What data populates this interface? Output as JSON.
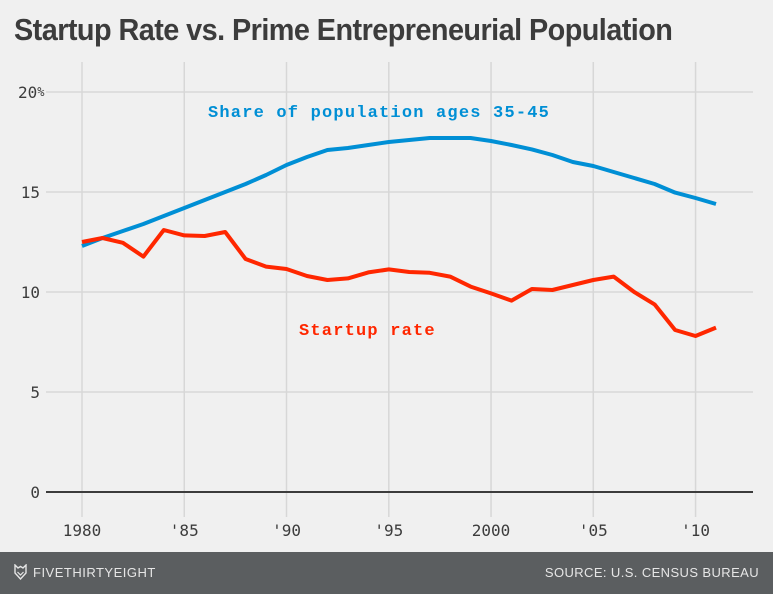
{
  "chart_data": {
    "type": "line",
    "title": "Startup Rate vs. Prime Entrepreneurial Population",
    "xlabel": "",
    "ylabel": "",
    "x": [
      1980,
      1981,
      1982,
      1983,
      1984,
      1985,
      1986,
      1987,
      1988,
      1989,
      1990,
      1991,
      1992,
      1993,
      1994,
      1995,
      1996,
      1997,
      1998,
      1999,
      2000,
      2001,
      2002,
      2003,
      2004,
      2005,
      2006,
      2007,
      2008,
      2009,
      2010,
      2011
    ],
    "xlim": [
      1980,
      2011
    ],
    "ylim": [
      0,
      20
    ],
    "x_ticks": [
      {
        "value": 1980,
        "label": "1980"
      },
      {
        "value": 1985,
        "label": "'85"
      },
      {
        "value": 1990,
        "label": "'90"
      },
      {
        "value": 1995,
        "label": "'95"
      },
      {
        "value": 2000,
        "label": "2000"
      },
      {
        "value": 2005,
        "label": "'05"
      },
      {
        "value": 2010,
        "label": "'10"
      }
    ],
    "y_ticks": [
      {
        "value": 0,
        "label": "0"
      },
      {
        "value": 5,
        "label": "5"
      },
      {
        "value": 10,
        "label": "10"
      },
      {
        "value": 15,
        "label": "15"
      },
      {
        "value": 20,
        "label": "20%"
      }
    ],
    "grid": true,
    "series": [
      {
        "name": "Share of population ages 35-45",
        "color": "#008fd5",
        "values": [
          12.3,
          12.7,
          13.05,
          13.4,
          13.8,
          14.2,
          14.6,
          15.0,
          15.4,
          15.85,
          16.35,
          16.75,
          17.1,
          17.2,
          17.35,
          17.5,
          17.6,
          17.7,
          17.7,
          17.7,
          17.55,
          17.35,
          17.13,
          16.85,
          16.5,
          16.3,
          16.0,
          15.7,
          15.4,
          14.97,
          14.7,
          14.4
        ]
      },
      {
        "name": "Startup rate",
        "color": "#ff2700",
        "values": [
          12.5,
          12.7,
          12.46,
          11.77,
          13.1,
          12.83,
          12.8,
          13.0,
          11.65,
          11.27,
          11.15,
          10.8,
          10.6,
          10.68,
          10.98,
          11.13,
          11.0,
          10.96,
          10.77,
          10.27,
          9.93,
          9.57,
          10.15,
          10.1,
          10.35,
          10.6,
          10.77,
          10.0,
          9.38,
          8.1,
          7.8,
          8.22
        ]
      }
    ],
    "annotations": [
      {
        "text": "Share of population ages 35-45",
        "series": 0
      },
      {
        "text": "Startup rate",
        "series": 1
      }
    ]
  },
  "footer": {
    "brand": "FIVETHIRTYEIGHT",
    "brand_icon": "fox-logo-icon",
    "source": "SOURCE: U.S. CENSUS BUREAU"
  },
  "colors": {
    "background": "#f0f0f0",
    "grid": "#d7d7d7",
    "baseline": "#3c3c3c",
    "footer": "#5b5e60"
  }
}
